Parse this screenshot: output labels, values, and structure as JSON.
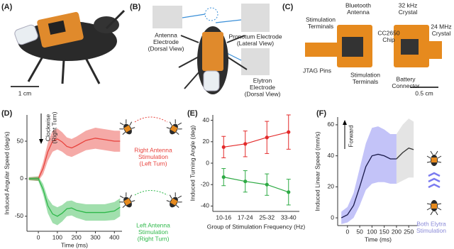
{
  "panel_a": {
    "label": "(A)",
    "scale": "1 cm"
  },
  "panel_b": {
    "label": "(B)",
    "callouts": [
      [
        "Antenna",
        "Electrode",
        "(Dorsal View)"
      ],
      [
        "Pronotum Electrode",
        "(Lateral View)"
      ],
      [
        "Elytron",
        "Electrode",
        "(Dorsal View)"
      ]
    ]
  },
  "panel_c": {
    "label": "(C)",
    "callouts": [
      [
        "Bluetooth",
        "Antenna"
      ],
      [
        "Stimulation",
        "Terminals"
      ],
      [
        "CC2650",
        "Chip"
      ],
      [
        "JTAG Pins"
      ],
      [
        "Stimulation",
        "Terminals"
      ],
      [
        "32 kHz",
        "Crystal"
      ],
      [
        "24 MHz",
        "Crystal"
      ],
      [
        "Battery",
        "Connector"
      ]
    ],
    "scale": "0.5 cm"
  },
  "chart_data": [
    {
      "type": "line",
      "panel": "(D)",
      "x": [
        -50,
        0,
        25,
        50,
        75,
        100,
        125,
        150,
        175,
        200,
        250,
        300,
        350,
        400,
        430
      ],
      "series": [
        {
          "color": "#e8423c",
          "values": [
            0,
            0,
            14,
            36,
            50,
            53,
            49,
            43,
            41,
            44,
            51,
            54,
            52,
            50,
            50
          ],
          "spread": [
            2,
            3,
            8,
            12,
            14,
            14,
            13,
            12,
            12,
            12,
            13,
            14,
            14,
            14,
            14
          ]
        },
        {
          "color": "#2eb84a",
          "values": [
            0,
            0,
            -14,
            -36,
            -47,
            -50,
            -46,
            -40,
            -39,
            -42,
            -45,
            -45,
            -45,
            -43,
            -38
          ],
          "spread": [
            2,
            3,
            7,
            10,
            12,
            12,
            11,
            10,
            10,
            10,
            11,
            11,
            11,
            12,
            12
          ]
        }
      ],
      "xlim": [
        -60,
        440
      ],
      "xticks": [
        0,
        100,
        200,
        300,
        400
      ],
      "ylim": [
        -70,
        85
      ],
      "yticks": [
        -50,
        0,
        50
      ],
      "xlabel": "Time (ms)",
      "ylabel": "Induced Angular Speed (deg/s)",
      "annotations": [
        [
          "Clockwise",
          "(Right Turn)"
        ],
        [
          "Right Antenna",
          "Stimulation",
          "(Left Turn)"
        ],
        [
          "Left Antenna",
          "Stimulation",
          "(Right Turn)"
        ]
      ]
    },
    {
      "type": "errorbar",
      "panel": "(E)",
      "categories": [
        "10-16",
        "17-24",
        "25-32",
        "33-40"
      ],
      "series": [
        {
          "color": "#e32a2a",
          "values": [
            15,
            18,
            24,
            29
          ],
          "errors": [
            10,
            12,
            15,
            16
          ]
        },
        {
          "color": "#2eaa44",
          "values": [
            -13,
            -17,
            -20,
            -27
          ],
          "errors": [
            8,
            10,
            10,
            12
          ]
        }
      ],
      "ylim": [
        -45,
        45
      ],
      "yticks": [
        -40,
        -20,
        0,
        20,
        40
      ],
      "xlabel": "Group of Stimulation Frequency (Hz)",
      "ylabel": "Induced Turning Angle (deg)"
    },
    {
      "type": "line",
      "panel": "(F)",
      "x": [
        -25,
        0,
        25,
        50,
        75,
        100,
        125,
        150,
        175,
        200,
        225,
        250,
        270
      ],
      "series": [
        {
          "color": "#7b7bf0",
          "line_color": "#1a1a4a",
          "values": [
            0,
            2,
            8,
            20,
            33,
            40,
            41,
            40,
            38,
            38,
            null,
            null,
            null
          ],
          "spread": [
            4,
            5,
            8,
            12,
            15,
            18,
            18,
            17,
            16,
            16,
            null,
            null,
            null
          ]
        },
        {
          "color": "#c4c4c4",
          "line_color": "#333333",
          "values": [
            null,
            null,
            null,
            null,
            null,
            null,
            null,
            null,
            null,
            38,
            42,
            45,
            44
          ],
          "spread": [
            null,
            null,
            null,
            null,
            null,
            null,
            null,
            null,
            null,
            16,
            18,
            19,
            18
          ]
        }
      ],
      "xlim": [
        -40,
        290
      ],
      "xticks": [
        0,
        50,
        100,
        150,
        200,
        250
      ],
      "ylim": [
        -5,
        65
      ],
      "yticks": [
        0,
        20,
        40,
        60
      ],
      "xlabel": "Time (ms)",
      "ylabel": "Induced Linear Speed (mm/s)",
      "annotations": [
        [
          "Forward"
        ],
        [
          "Both Elytra",
          "Stimulation"
        ]
      ]
    }
  ]
}
